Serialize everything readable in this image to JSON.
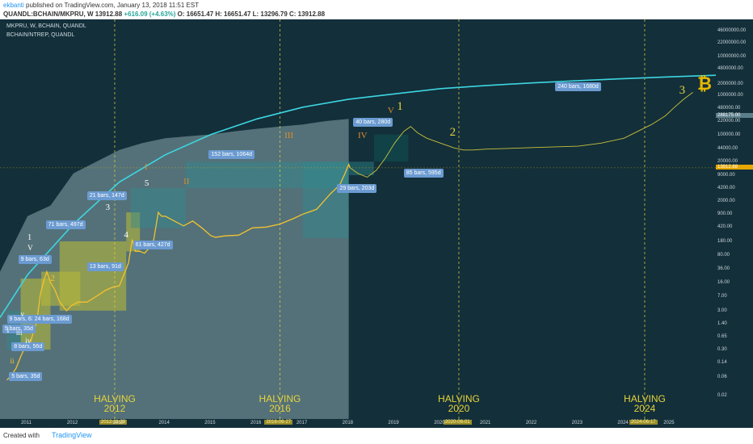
{
  "header": {
    "author": "ekbanti",
    "published": " published on TradingView.com, January 13, 2018 11:51 EST",
    "symbol_line": "QUANDL:BCHAIN/MKPRU, W",
    "last": "13912.88",
    "change": "+616.09 (+4.63%)",
    "ohlc": "O: 16651.47  H: 16651.47  L: 13296.79  C: 13912.88"
  },
  "legend": {
    "series1": "MKPRU, W, BCHAIN, QUANDL",
    "series2": "BCHAIN/NTREP, QUANDL"
  },
  "footer": {
    "created": "Created with",
    "brand": "TradingView"
  },
  "colors": {
    "background": "#132f3a",
    "price": "#f2c230",
    "curve": "#3dd6e0",
    "overlay": "#8aa7ad",
    "box_yellow": "#b6b83a",
    "box_teal": "#2f8a8e",
    "tag": "#6b9bd1",
    "halving": "#e6d33a"
  },
  "chart_data": {
    "type": "line",
    "title": "",
    "y_scale": "log",
    "x_ticks": [
      "2011",
      "2012",
      "2013",
      "2014",
      "2015",
      "2016",
      "2017",
      "2018",
      "2019",
      "2020",
      "2021",
      "2022",
      "2023",
      "2024",
      "2025"
    ],
    "x_range": [
      2010.4,
      2026.0
    ],
    "y_ticks": [
      "46000000.00",
      "22000000.00",
      "10000000.00",
      "4800000.00",
      "2000000.00",
      "1000000.00",
      "480000.00",
      "220000.00",
      "100000.00",
      "44000.00",
      "20000.00",
      "9000.00",
      "4200.00",
      "2000.00",
      "900.00",
      "420.00",
      "180.00",
      "80.00",
      "36.00",
      "16.00",
      "7.00",
      "3.00",
      "1.40",
      "0.65",
      "0.30",
      "0.14",
      "0.06",
      "0.02"
    ],
    "y_highlight": [
      "288175.00",
      "13912.88"
    ],
    "series": [
      {
        "kind": "price",
        "x": [
          2010.55,
          2010.62,
          2010.75,
          2010.85,
          2010.92,
          2011.0,
          2011.05,
          2011.12,
          2011.2,
          2011.28,
          2011.35,
          2011.42,
          2011.5,
          2011.6,
          2011.7,
          2011.85,
          2011.95,
          2012.1,
          2012.3,
          2012.5,
          2012.7,
          2012.85,
          2013.0,
          2013.1,
          2013.2,
          2013.28,
          2013.35,
          2013.45,
          2013.55,
          2013.65,
          2013.75,
          2013.85,
          2013.92,
          2014.0,
          2014.2,
          2014.4,
          2014.6,
          2014.8,
          2015.0,
          2015.1,
          2015.3,
          2015.6,
          2015.9,
          2016.2,
          2016.5,
          2016.8,
          2017.0,
          2017.3,
          2017.6,
          2017.8,
          2017.92,
          2018.0,
          2018.03
        ],
        "y": [
          0.05,
          0.06,
          0.1,
          0.2,
          0.3,
          0.3,
          0.4,
          0.8,
          1.5,
          8,
          17,
          30,
          16,
          10,
          5,
          3,
          4,
          5,
          5,
          7,
          10,
          12,
          13,
          25,
          50,
          200,
          100,
          100,
          90,
          120,
          200,
          1000,
          800,
          800,
          600,
          450,
          600,
          400,
          250,
          230,
          250,
          260,
          400,
          420,
          500,
          700,
          900,
          1200,
          3000,
          5000,
          10000,
          17000,
          13912.88
        ]
      },
      {
        "kind": "projection",
        "x": [
          2018.03,
          2018.2,
          2018.4,
          2018.6,
          2018.8,
          2019.0,
          2019.2,
          2019.35,
          2019.5,
          2019.7,
          2020.0,
          2020.3,
          2020.5,
          2020.7,
          2021.0,
          2021.5,
          2022.0,
          2022.5,
          2023.0,
          2023.5,
          2024.0,
          2024.3,
          2024.6,
          2024.9,
          2025.1,
          2025.3,
          2025.5
        ],
        "y": [
          13912.88,
          10000,
          8000,
          12000,
          25000,
          60000,
          120000,
          160000,
          110000,
          80000,
          60000,
          45000,
          40000,
          40000,
          42000,
          44000,
          46000,
          48000,
          50000,
          60000,
          80000,
          120000,
          180000,
          300000,
          500000,
          800000,
          1200000
        ]
      },
      {
        "kind": "curve",
        "x": [
          2010.4,
          2011.0,
          2012.0,
          2013.0,
          2014.0,
          2015.0,
          2016.0,
          2017.0,
          2018.0,
          2019.0,
          2020.0,
          2021.0,
          2022.0,
          2023.0,
          2024.0,
          2025.0,
          2026.0
        ],
        "y": [
          2,
          25,
          500,
          6000,
          30000,
          100000,
          250000,
          500000,
          800000,
          1100000,
          1500000,
          1800000,
          2100000,
          2400000,
          2700000,
          3000000,
          3300000
        ]
      },
      {
        "kind": "overlay",
        "x": [
          2010.4,
          2011.0,
          2011.5,
          2012.0,
          2012.5,
          2013.0,
          2013.5,
          2014.0,
          2014.5,
          2015.0,
          2015.5,
          2016.0,
          2016.5,
          2017.0,
          2017.5,
          2018.0
        ],
        "y": [
          30,
          800,
          1500,
          10000,
          20000,
          40000,
          60000,
          80000,
          90000,
          100000,
          120000,
          140000,
          160000,
          180000,
          220000,
          250000
        ]
      }
    ],
    "boxes": [
      {
        "kind": "teal",
        "x": [
          2010.55,
          2011.0
        ],
        "y": [
          0.3,
          3
        ]
      },
      {
        "kind": "yellow",
        "x": [
          2010.85,
          2011.5
        ],
        "y": [
          0.3,
          20
        ]
      },
      {
        "kind": "yellow",
        "x": [
          2011.3,
          2012.15
        ],
        "y": [
          4,
          30
        ]
      },
      {
        "kind": "yellow",
        "x": [
          2011.7,
          2013.15
        ],
        "y": [
          3,
          180
        ]
      },
      {
        "kind": "yellow",
        "x": [
          2013.15,
          2013.45
        ],
        "y": [
          100,
          1000
        ]
      },
      {
        "kind": "teal",
        "x": [
          2013.25,
          2014.45
        ],
        "y": [
          400,
          4200
        ]
      },
      {
        "kind": "teal",
        "x": [
          2014.45,
          2018.0
        ],
        "y": [
          4200,
          20000
        ]
      },
      {
        "kind": "teal",
        "x": [
          2017.0,
          2018.0
        ],
        "y": [
          220,
          20000
        ]
      },
      {
        "kind": "teal",
        "x": [
          2018.0,
          2018.55
        ],
        "y": [
          9000,
          20000
        ]
      },
      {
        "kind": "dark",
        "x": [
          2018.55,
          2019.3
        ],
        "y": [
          20000,
          100000
        ]
      }
    ],
    "halvings": [
      {
        "x": 2012.9,
        "label": "HALVING\n2012",
        "date": "2012-11-29"
      },
      {
        "x": 2016.5,
        "label": "HALVING\n2016",
        "date": "2016-06-27"
      },
      {
        "x": 2020.4,
        "label": "HALVING\n2020",
        "date": "2020-06-01"
      },
      {
        "x": 2024.45,
        "label": "HALVING\n2024",
        "date": "2024-06-17"
      }
    ],
    "annotations": {
      "tags": [
        {
          "text": "5 bars, 35d",
          "x": 2010.45,
          "y": 1.0
        },
        {
          "text": "9 bars, 63d",
          "x": 2010.55,
          "y": 1.8
        },
        {
          "text": "8 bars, 56d",
          "x": 2010.65,
          "y": 0.35
        },
        {
          "text": "5 bars, 35d",
          "x": 2010.6,
          "y": 0.06
        },
        {
          "text": "24 bars, 168d",
          "x": 2011.1,
          "y": 1.8
        },
        {
          "text": "9 bars, 63d",
          "x": 2010.8,
          "y": 60
        },
        {
          "text": "71 bars, 497d",
          "x": 2011.4,
          "y": 460
        },
        {
          "text": "13 bars, 91d",
          "x": 2012.3,
          "y": 40
        },
        {
          "text": "21 bars, 147d",
          "x": 2012.3,
          "y": 2600
        },
        {
          "text": "61 bars, 427d",
          "x": 2013.3,
          "y": 140
        },
        {
          "text": "152 bars, 1064d",
          "x": 2014.95,
          "y": 30000
        },
        {
          "text": "29 bars, 203d",
          "x": 2017.75,
          "y": 4000
        },
        {
          "text": "40 bars, 280d",
          "x": 2018.1,
          "y": 200000
        },
        {
          "text": "85 bars, 595d",
          "x": 2019.2,
          "y": 10000
        },
        {
          "text": "240 bars, 1680d",
          "x": 2022.5,
          "y": 1600000
        }
      ],
      "waves": [
        {
          "text": "i",
          "x": 2010.55,
          "y": 0.9,
          "color": "#ffffff",
          "size": 10
        },
        {
          "text": "ii",
          "x": 2010.62,
          "y": 0.15,
          "color": "#f2c230",
          "size": 9
        },
        {
          "text": "iii",
          "x": 2010.75,
          "y": 0.8,
          "color": "#ffffff",
          "size": 9
        },
        {
          "text": "iv",
          "x": 2010.95,
          "y": 0.5,
          "color": "#ffffff",
          "size": 9
        },
        {
          "text": "v",
          "x": 2010.85,
          "y": 2.4,
          "color": "#ffffff",
          "size": 9
        },
        {
          "text": "1",
          "x": 2011.0,
          "y": 220,
          "color": "#ffffff",
          "size": 10
        },
        {
          "text": "V",
          "x": 2011.0,
          "y": 120,
          "color": "#ffffff",
          "size": 9
        },
        {
          "text": "2",
          "x": 2011.5,
          "y": 20,
          "color": "#f2c230",
          "size": 11
        },
        {
          "text": "3",
          "x": 2012.7,
          "y": 1300,
          "color": "#ffffff",
          "size": 11
        },
        {
          "text": "4",
          "x": 2013.1,
          "y": 260,
          "color": "#ffffff",
          "size": 11
        },
        {
          "text": "I",
          "x": 2013.55,
          "y": 14000,
          "color": "#e08a2a",
          "size": 11
        },
        {
          "text": "5",
          "x": 2013.55,
          "y": 5500,
          "color": "#ffffff",
          "size": 11
        },
        {
          "text": "II",
          "x": 2014.4,
          "y": 6000,
          "color": "#e08a2a",
          "size": 11
        },
        {
          "text": "III",
          "x": 2016.6,
          "y": 90000,
          "color": "#e08a2a",
          "size": 11
        },
        {
          "text": "IV",
          "x": 2018.2,
          "y": 90000,
          "color": "#e08a2a",
          "size": 11
        },
        {
          "text": "V",
          "x": 2018.85,
          "y": 400000,
          "color": "#e08a2a",
          "size": 11
        },
        {
          "text": "1",
          "x": 2019.05,
          "y": 500000,
          "color": "#e6d33a",
          "size": 15
        },
        {
          "text": "2",
          "x": 2020.2,
          "y": 110000,
          "color": "#e6d33a",
          "size": 15
        },
        {
          "text": "3",
          "x": 2025.2,
          "y": 1300000,
          "color": "#e6d33a",
          "size": 15
        }
      ]
    }
  }
}
